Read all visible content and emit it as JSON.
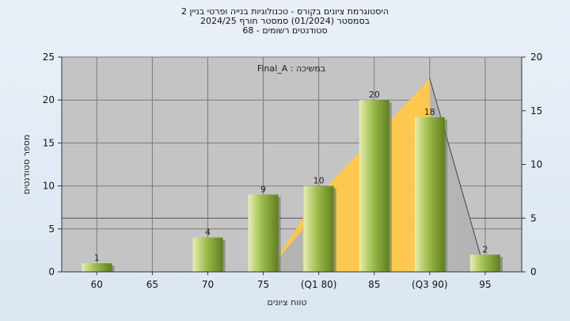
{
  "chart_data": {
    "type": "bar",
    "title_lines": [
      "היסטוגרמת ציונים בקורס - טכנולוגיות בנייה ופרטי בניין 2",
      "בסמסטר  (01/2024)  סמסטר חורף 2024/25",
      "סטודנטים רשומים - 68"
    ],
    "annotation": "במשיכה : Final_A",
    "categories": [
      "60",
      "65",
      "70",
      "75",
      "(Q1 80)",
      "85",
      "(Q3 90)",
      "95"
    ],
    "values": [
      1,
      0,
      4,
      9,
      10,
      20,
      18,
      2
    ],
    "value_labels": [
      "1",
      "",
      "4",
      "9",
      "10",
      "20",
      "18",
      "2"
    ],
    "ylabel": "מספר סטודנטים",
    "xlabel": "טווח ציונים",
    "ylim": [
      0,
      25
    ],
    "yticks": [
      0,
      5,
      10,
      15,
      20,
      25
    ],
    "y2lim": [
      0,
      20
    ],
    "y2ticks": [
      0,
      5,
      10,
      15,
      20
    ],
    "distribution_curve": [
      {
        "x": "(Q1 80)",
        "y": 7.2
      },
      {
        "x": "(Q3 90)",
        "y": 18
      },
      {
        "x": "95",
        "y": 0
      }
    ],
    "colors": {
      "bar_light": "#e6f0ac",
      "bar_mid": "#9dbc4c",
      "bar_dark": "#5f7f20",
      "area": "#ffc84a",
      "curve": "#555555",
      "plot_bg": "#c4c4c4"
    }
  }
}
